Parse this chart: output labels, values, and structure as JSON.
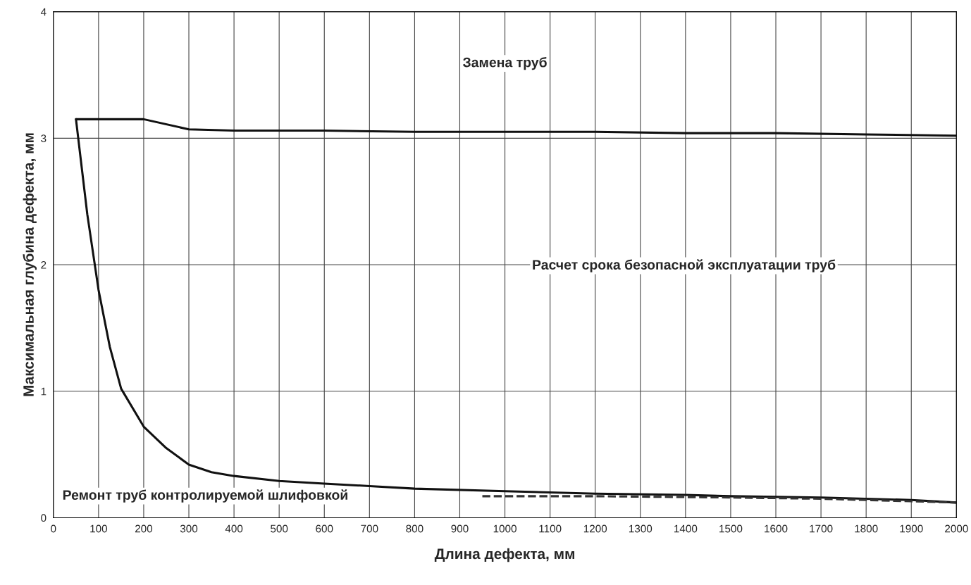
{
  "chart_data": {
    "type": "line",
    "xlabel": "Длина дефекта, мм",
    "ylabel": "Максимальная глубина дефекта, мм",
    "xlim": [
      0,
      2000
    ],
    "xticks": [
      0,
      100,
      200,
      300,
      400,
      500,
      600,
      700,
      800,
      900,
      1000,
      1100,
      1200,
      1300,
      1400,
      1500,
      1600,
      1700,
      1800,
      1900,
      2000
    ],
    "ylim": [
      0,
      4
    ],
    "yticks": [
      0,
      1,
      2,
      3,
      4
    ],
    "grid": true,
    "series": [
      {
        "color": "#111111",
        "x": [
          50,
          100,
          150,
          200,
          300,
          400,
          600,
          800,
          1000,
          1200,
          1400,
          1600,
          1800,
          2000
        ],
        "values": [
          3.15,
          3.15,
          3.15,
          3.15,
          3.07,
          3.06,
          3.06,
          3.05,
          3.05,
          3.05,
          3.04,
          3.04,
          3.03,
          3.02
        ]
      },
      {
        "color": "#111111",
        "x": [
          50,
          75,
          100,
          125,
          150,
          200,
          250,
          300,
          350,
          400,
          500,
          600,
          700,
          800,
          1000,
          1200,
          1400,
          1500,
          1700,
          1900,
          2000
        ],
        "values": [
          3.15,
          2.4,
          1.8,
          1.35,
          1.02,
          0.72,
          0.55,
          0.42,
          0.36,
          0.33,
          0.29,
          0.27,
          0.25,
          0.23,
          0.21,
          0.19,
          0.18,
          0.17,
          0.16,
          0.14,
          0.12
        ]
      },
      {
        "color": "#333333",
        "line_style": "dashed",
        "x": [
          950,
          1200,
          1500,
          1700,
          1900,
          2000
        ],
        "values": [
          0.17,
          0.17,
          0.16,
          0.15,
          0.13,
          0.12
        ]
      }
    ],
    "annotations": [
      "Замена труб",
      "Расчет срока безопасной эксплуатации труб",
      "Ремонт труб контролируемой шлифовкой"
    ]
  }
}
